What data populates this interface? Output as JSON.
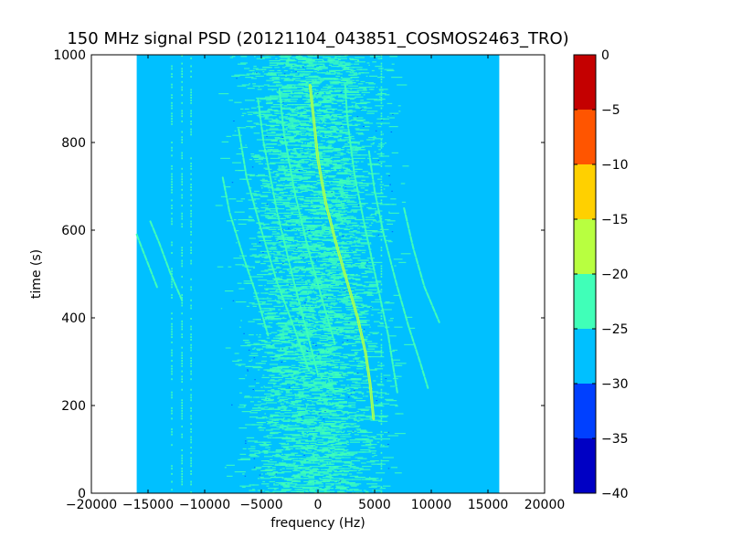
{
  "chart_data": {
    "type": "heatmap",
    "title": "150 MHz signal PSD (20121104_043851_COSMOS2463_TRO)",
    "xlabel": "frequency (Hz)",
    "ylabel": "time (s)",
    "xlim": [
      -20000,
      20000
    ],
    "ylim": [
      0,
      1000
    ],
    "x_ticks": [
      -20000,
      -15000,
      -10000,
      -5000,
      0,
      5000,
      10000,
      15000,
      20000
    ],
    "y_ticks": [
      0,
      200,
      400,
      600,
      800,
      1000
    ],
    "data_extent": {
      "x": [
        -16000,
        16000
      ],
      "y": [
        0,
        1000
      ]
    },
    "grid": false,
    "background_level": -27.5,
    "noise_band": {
      "center_hz": -500,
      "width_hz": 9000,
      "level": -22.5
    },
    "colorbar": {
      "min": -40,
      "max": 0,
      "ticks": [
        0,
        -5,
        -10,
        -15,
        -20,
        -25,
        -30,
        -35,
        -40
      ],
      "bins": [
        {
          "from": -40,
          "to": -35,
          "color": "#0000c4"
        },
        {
          "from": -35,
          "to": -30,
          "color": "#0040ff"
        },
        {
          "from": -30,
          "to": -25,
          "color": "#00c0ff"
        },
        {
          "from": -25,
          "to": -20,
          "color": "#40ffb8"
        },
        {
          "from": -20,
          "to": -15,
          "color": "#b8ff40"
        },
        {
          "from": -15,
          "to": -10,
          "color": "#ffd000"
        },
        {
          "from": -10,
          "to": -5,
          "color": "#ff5500"
        },
        {
          "from": -5,
          "to": 0,
          "color": "#c40000"
        }
      ]
    },
    "vertical_lines": [
      {
        "x": -12900,
        "level": -22.5
      },
      {
        "x": -12000,
        "level": -22.5
      },
      {
        "x": -11200,
        "level": -22.5
      },
      {
        "x": 5600,
        "level": -22.5
      }
    ],
    "series": [
      {
        "level": -17.5,
        "points": [
          [
            -700,
            930
          ],
          [
            -400,
            860
          ],
          [
            0,
            760
          ],
          [
            700,
            660
          ],
          [
            1600,
            570
          ],
          [
            2600,
            480
          ],
          [
            3500,
            400
          ],
          [
            4200,
            320
          ],
          [
            4600,
            250
          ],
          [
            4900,
            170
          ]
        ]
      },
      {
        "level": -22.5,
        "points": [
          [
            2400,
            930
          ],
          [
            2600,
            850
          ],
          [
            3200,
            730
          ],
          [
            4200,
            600
          ],
          [
            5200,
            480
          ],
          [
            6200,
            360
          ],
          [
            7000,
            230
          ]
        ]
      },
      {
        "level": -22.5,
        "points": [
          [
            4500,
            780
          ],
          [
            5000,
            690
          ],
          [
            5800,
            590
          ],
          [
            6900,
            480
          ],
          [
            8000,
            380
          ],
          [
            9000,
            300
          ],
          [
            9700,
            240
          ]
        ]
      },
      {
        "level": -22.5,
        "points": [
          [
            -5300,
            900
          ],
          [
            -4800,
            800
          ],
          [
            -3600,
            640
          ],
          [
            -2200,
            490
          ],
          [
            -1000,
            370
          ],
          [
            0,
            270
          ]
        ]
      },
      {
        "level": -22.5,
        "points": [
          [
            -3400,
            920
          ],
          [
            -3000,
            820
          ],
          [
            -2000,
            680
          ],
          [
            -800,
            550
          ],
          [
            500,
            430
          ],
          [
            1500,
            340
          ]
        ]
      },
      {
        "level": -22.5,
        "points": [
          [
            -7000,
            830
          ],
          [
            -6300,
            720
          ],
          [
            -5000,
            600
          ],
          [
            -3600,
            480
          ],
          [
            -2000,
            370
          ],
          [
            -800,
            280
          ]
        ]
      },
      {
        "level": -22.5,
        "points": [
          [
            -8400,
            720
          ],
          [
            -7800,
            640
          ],
          [
            -6600,
            540
          ],
          [
            -5400,
            450
          ],
          [
            -4400,
            360
          ]
        ]
      },
      {
        "level": -22.5,
        "points": [
          [
            -14800,
            620
          ],
          [
            -14000,
            570
          ],
          [
            -13000,
            500
          ],
          [
            -12000,
            440
          ]
        ]
      },
      {
        "level": -22.5,
        "points": [
          [
            -16000,
            590
          ],
          [
            -15400,
            550
          ],
          [
            -14800,
            510
          ],
          [
            -14200,
            470
          ]
        ]
      },
      {
        "level": -22.5,
        "points": [
          [
            7600,
            650
          ],
          [
            8400,
            560
          ],
          [
            9400,
            470
          ],
          [
            10700,
            390
          ]
        ]
      }
    ]
  }
}
